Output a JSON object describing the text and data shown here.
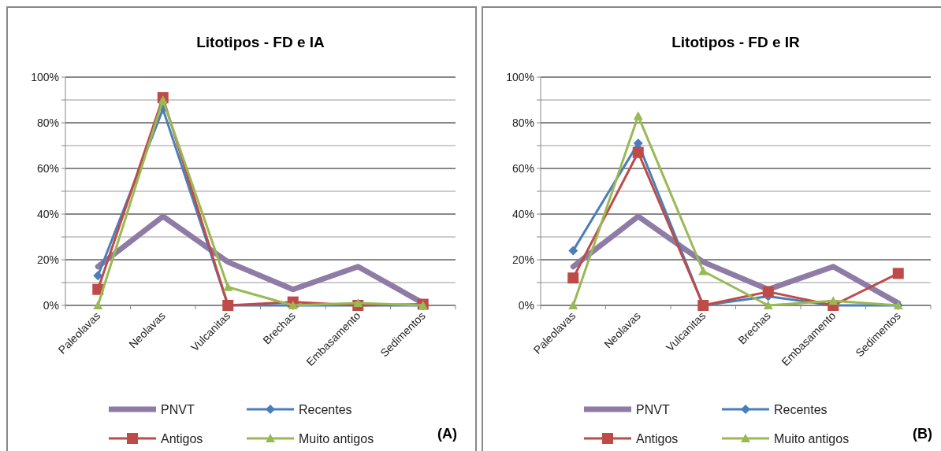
{
  "chart_data": [
    {
      "type": "line",
      "title": "Litotipos - FD e IA",
      "categories": [
        "Paleolavas",
        "Neolavas",
        "Vulcanitas",
        "Brechas",
        "Embasamento",
        "Sedimentos"
      ],
      "series": [
        {
          "name": "PNVT",
          "color": "#8e7ca6",
          "marker": "none",
          "values": [
            17,
            39,
            19,
            7,
            17,
            1
          ]
        },
        {
          "name": "Recentes",
          "color": "#4a7ebb",
          "marker": "diamond",
          "values": [
            13,
            86,
            0,
            0,
            0,
            0
          ]
        },
        {
          "name": "Antigos",
          "color": "#be4b48",
          "marker": "square",
          "values": [
            7,
            91,
            0,
            1.5,
            0,
            0.5
          ]
        },
        {
          "name": "Muito antigos",
          "color": "#98b954",
          "marker": "triangle",
          "values": [
            0,
            90,
            8,
            0,
            1,
            0
          ]
        }
      ],
      "ylim": [
        0,
        100
      ],
      "yticks": [
        {
          "value": 0,
          "label": "0%"
        },
        {
          "value": 10,
          "label": null
        },
        {
          "value": 20,
          "label": "20%"
        },
        {
          "value": 30,
          "label": null
        },
        {
          "value": 40,
          "label": "40%"
        },
        {
          "value": 50,
          "label": null
        },
        {
          "value": 60,
          "label": "60%"
        },
        {
          "value": 70,
          "label": null
        },
        {
          "value": 80,
          "label": "80%"
        },
        {
          "value": 90,
          "label": null
        },
        {
          "value": 100,
          "label": "100%"
        }
      ],
      "grid": "y",
      "legend": "bottom",
      "annotations": [
        "(A)"
      ]
    },
    {
      "type": "line",
      "title": "Litotipos - FD e IR",
      "categories": [
        "Paleolavas",
        "Neolavas",
        "Vulcanitas",
        "Brechas",
        "Embasamento",
        "Sedimentos"
      ],
      "series": [
        {
          "name": "PNVT",
          "color": "#8e7ca6",
          "marker": "none",
          "values": [
            17,
            39,
            19,
            7,
            17,
            1
          ]
        },
        {
          "name": "Recentes",
          "color": "#4a7ebb",
          "marker": "diamond",
          "values": [
            24,
            71,
            0,
            4,
            0,
            0
          ]
        },
        {
          "name": "Antigos",
          "color": "#be4b48",
          "marker": "square",
          "values": [
            12,
            67,
            0,
            6,
            0,
            14
          ]
        },
        {
          "name": "Muito antigos",
          "color": "#98b954",
          "marker": "triangle",
          "values": [
            0,
            83,
            15,
            0,
            2,
            0
          ]
        }
      ],
      "ylim": [
        0,
        100
      ],
      "yticks": [
        {
          "value": 0,
          "label": "0%"
        },
        {
          "value": 10,
          "label": null
        },
        {
          "value": 20,
          "label": "20%"
        },
        {
          "value": 30,
          "label": null
        },
        {
          "value": 40,
          "label": "40%"
        },
        {
          "value": 50,
          "label": null
        },
        {
          "value": 60,
          "label": "60%"
        },
        {
          "value": 70,
          "label": null
        },
        {
          "value": 80,
          "label": "80%"
        },
        {
          "value": 90,
          "label": null
        },
        {
          "value": 100,
          "label": "100%"
        }
      ],
      "grid": "y",
      "legend": "bottom",
      "annotations": [
        "(B)"
      ]
    }
  ]
}
